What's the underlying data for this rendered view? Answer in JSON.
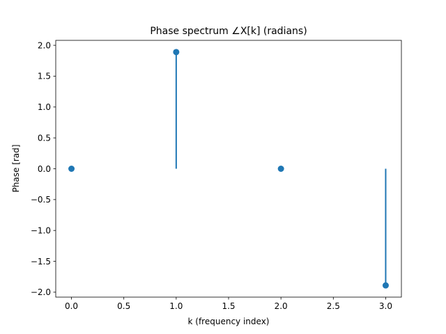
{
  "chart_data": {
    "type": "stem",
    "title": "Phase spectrum ∠X[k] (radians)",
    "xlabel": "k (frequency index)",
    "ylabel": "Phase [rad]",
    "x": [
      0,
      1,
      2,
      3
    ],
    "y": [
      0.0,
      1.89,
      0.0,
      -1.89
    ],
    "xlim": [
      -0.15,
      3.15
    ],
    "ylim": [
      -2.08,
      2.08
    ],
    "xticks": [
      0.0,
      0.5,
      1.0,
      1.5,
      2.0,
      2.5,
      3.0
    ],
    "xtick_labels": [
      "0.0",
      "0.5",
      "1.0",
      "1.5",
      "2.0",
      "2.5",
      "3.0"
    ],
    "yticks": [
      -2.0,
      -1.5,
      -1.0,
      -0.5,
      0.0,
      0.5,
      1.0,
      1.5,
      2.0
    ],
    "ytick_labels": [
      "−2.0",
      "−1.5",
      "−1.0",
      "−0.5",
      "0.0",
      "0.5",
      "1.0",
      "1.5",
      "2.0"
    ],
    "grid": false,
    "baseline": 0,
    "color": "#1f77b4"
  }
}
